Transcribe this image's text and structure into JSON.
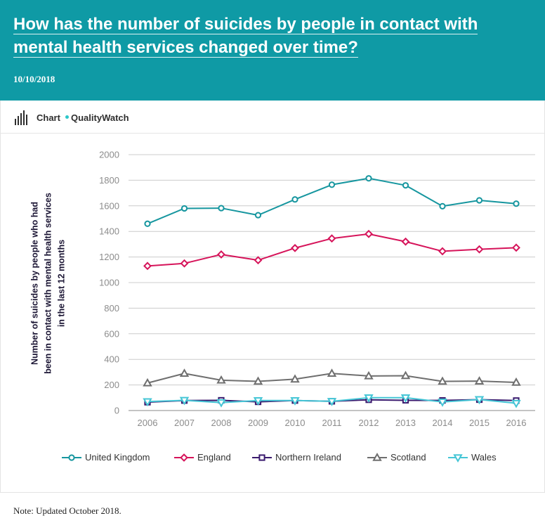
{
  "header": {
    "title": "How has the number of suicides by people in contact with mental health services changed over time?",
    "date": "10/10/2018"
  },
  "subheader": {
    "chart_label": "Chart",
    "source_label": "QualityWatch"
  },
  "colors": {
    "header_bg": "#0f9aa5",
    "united_kingdom": "#16969f",
    "england": "#d6145a",
    "northern_ireland": "#3a1a6e",
    "scotland": "#6f6f6f",
    "wales": "#45c6d6"
  },
  "chart_data": {
    "type": "line",
    "title": "",
    "xlabel": "",
    "ylabel": "Number of suicides by people who had been in contact with mental health services in the last 12 months",
    "ylim": [
      0,
      2000
    ],
    "yticks": [
      0,
      200,
      400,
      600,
      800,
      1000,
      1200,
      1400,
      1600,
      1800,
      2000
    ],
    "grid": true,
    "legend_position": "bottom",
    "categories": [
      "2006",
      "2007",
      "2008",
      "2009",
      "2010",
      "2011",
      "2012",
      "2013",
      "2014",
      "2015",
      "2016"
    ],
    "series": [
      {
        "name": "United Kingdom",
        "marker": "circle",
        "color": "#16969f",
        "values": [
          1460,
          1580,
          1582,
          1527,
          1650,
          1765,
          1815,
          1760,
          1597,
          1643,
          1617
        ]
      },
      {
        "name": "England",
        "marker": "diamond",
        "color": "#d6145a",
        "values": [
          1130,
          1150,
          1220,
          1175,
          1270,
          1345,
          1380,
          1320,
          1245,
          1260,
          1273
        ]
      },
      {
        "name": "Northern Ireland",
        "marker": "square",
        "color": "#3a1a6e",
        "values": [
          65,
          78,
          80,
          68,
          78,
          72,
          84,
          80,
          79,
          85,
          78
        ]
      },
      {
        "name": "Scotland",
        "marker": "triangle-up",
        "color": "#6f6f6f",
        "values": [
          215,
          290,
          237,
          228,
          245,
          290,
          270,
          272,
          228,
          230,
          220
        ]
      },
      {
        "name": "Wales",
        "marker": "triangle-down",
        "color": "#45c6d6",
        "values": [
          70,
          80,
          62,
          78,
          78,
          72,
          100,
          100,
          67,
          86,
          57
        ]
      }
    ]
  },
  "note": "Note:  Updated October 2018."
}
